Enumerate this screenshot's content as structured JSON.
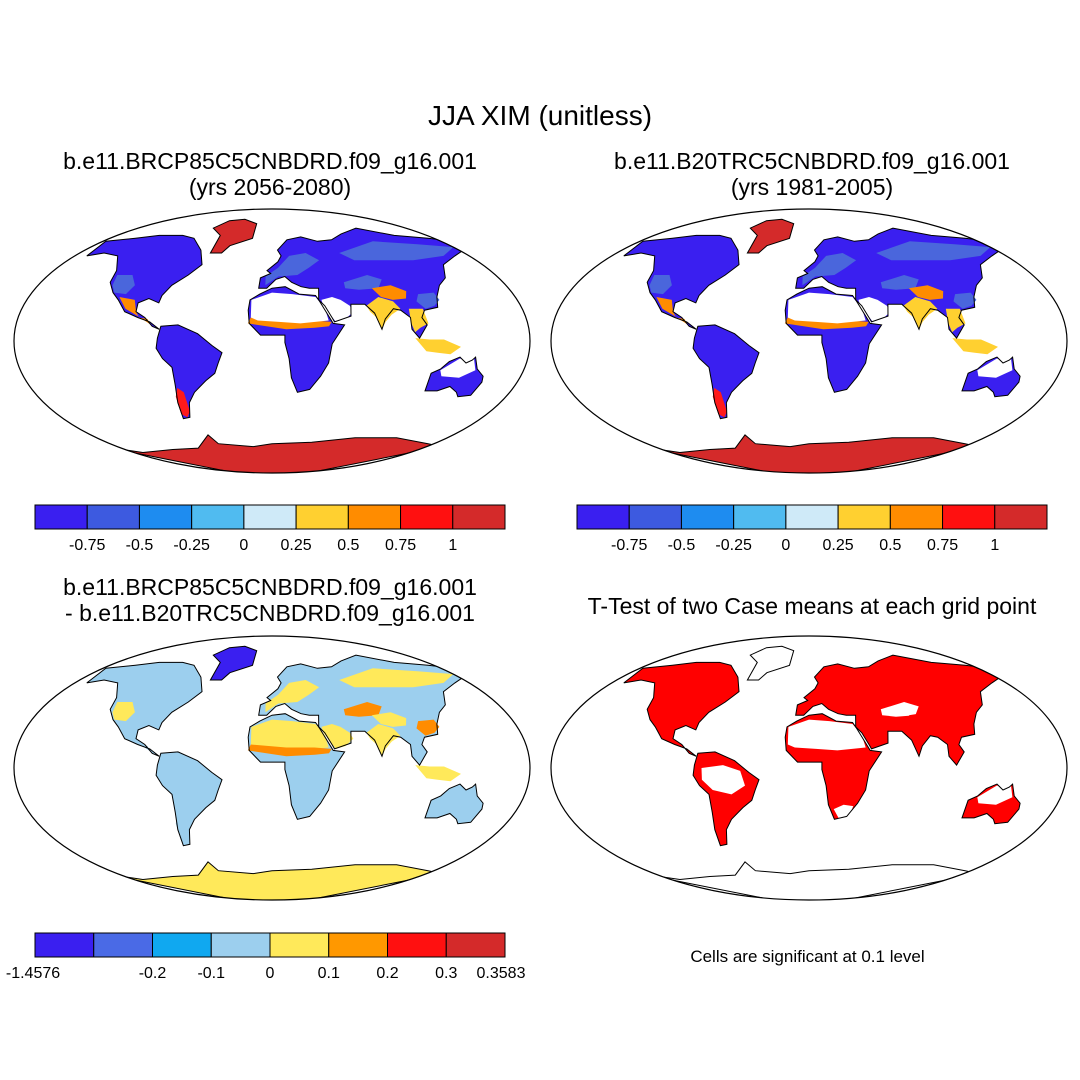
{
  "title": "JJA XIM (unitless)",
  "panels": [
    {
      "title_line1": "b.e11.BRCP85C5CNBDRD.f09_g16.001",
      "title_line2": "(yrs 2056-2080)",
      "colors": {
        "antarctica": "#d42a2a",
        "greenland": "#d42a2a",
        "land_main": "#3a1ff0",
        "land_high": "#4a66dc",
        "tropics_band": "#ff8c00",
        "arid_band": "#ffd030",
        "hot_spot": "#ff1a1a"
      }
    },
    {
      "title_line1": "b.e11.B20TRC5CNBDRD.f09_g16.001",
      "title_line2": "(yrs 1981-2005)",
      "colors": {
        "antarctica": "#d42a2a",
        "greenland": "#d42a2a",
        "land_main": "#3a1ff0",
        "land_high": "#4a66dc",
        "tropics_band": "#ff8c00",
        "arid_band": "#ffd030",
        "hot_spot": "#ff1a1a"
      }
    },
    {
      "title_line1": "b.e11.BRCP85C5CNBDRD.f09_g16.001",
      "title_line2": "- b.e11.B20TRC5CNBDRD.f09_g16.001",
      "colors": {
        "antarctica": "#ffe95a",
        "greenland": "#3a1ff0",
        "land_main": "#9ccfee",
        "land_high": "#ffe95a",
        "tropics_band": "#ffe95a",
        "arid_band": "#ff8c00",
        "hot_spot": "#ff1a1a"
      }
    },
    {
      "title_line1": "T-Test of two Case means at each grid point",
      "title_line2": "",
      "colors": {
        "antarctica": "#ffffff",
        "greenland": "#ffffff",
        "land_main": "#ff0000",
        "land_high": "#ffffff",
        "tropics_band": "#ff0000",
        "arid_band": "#ff0000",
        "hot_spot": "#ff0000"
      }
    }
  ],
  "colorbars": [
    {
      "colors": [
        "#3a1ff0",
        "#3d5ae0",
        "#1e8cf0",
        "#50bbf0",
        "#cfeaf8",
        "#ffd030",
        "#ff8c00",
        "#ff1010",
        "#d42a2a"
      ],
      "labels": [
        "-0.75",
        "-0.5",
        "-0.25",
        "0",
        "0.25",
        "0.5",
        "0.75",
        "1"
      ]
    },
    {
      "colors": [
        "#3a1ff0",
        "#3d5ae0",
        "#1e8cf0",
        "#50bbf0",
        "#cfeaf8",
        "#ffd030",
        "#ff8c00",
        "#ff1010",
        "#d42a2a"
      ],
      "labels": [
        "-0.75",
        "-0.5",
        "-0.25",
        "0",
        "0.25",
        "0.5",
        "0.75",
        "1"
      ]
    },
    {
      "colors": [
        "#3a1ff0",
        "#4a6ae6",
        "#10a8f0",
        "#9ccfee",
        "#ffe95a",
        "#ff9800",
        "#ff1010",
        "#d42a2a"
      ],
      "labels": [
        "-1.4576",
        "-0.2",
        "-0.1",
        "0",
        "0.1",
        "0.2",
        "0.3",
        "0.3583"
      ]
    }
  ],
  "significance_note": "Cells are significant at 0.1 level"
}
